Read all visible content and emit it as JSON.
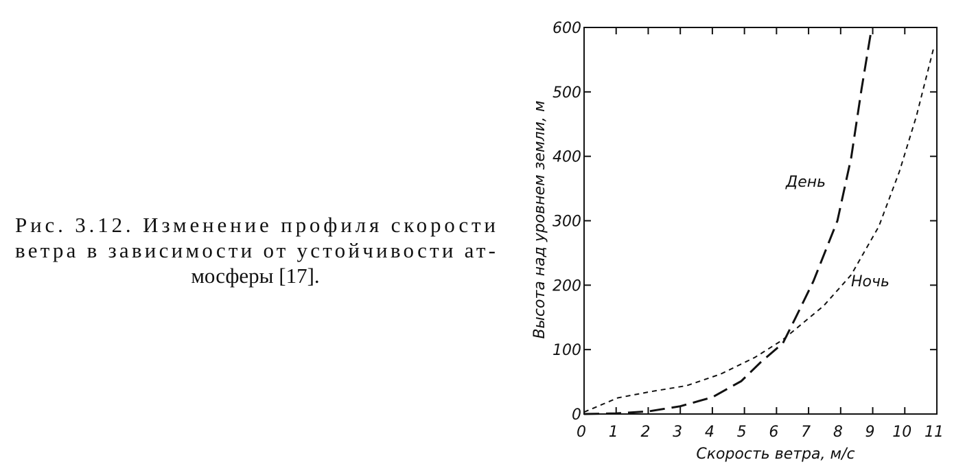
{
  "caption": [
    "Рис. 3.12. Изменение профиля скорости",
    "ветра в зависимости от устойчивости ат-",
    "мосферы [17]."
  ],
  "chart_data": {
    "type": "line",
    "xlabel": "Скорость ветра, м/с",
    "ylabel": "Высота над уровнем земли, м",
    "xlim": [
      0,
      11
    ],
    "xticks": [
      0,
      1,
      2,
      3,
      4,
      5,
      6,
      7,
      8,
      9,
      10,
      11
    ],
    "ylim": [
      0,
      600
    ],
    "yticks": [
      0,
      100,
      200,
      300,
      400,
      500,
      600
    ],
    "legend": "inline",
    "series": [
      {
        "name": "День",
        "color": "#111111",
        "dash": "long",
        "x": [
          0,
          1,
          2,
          3,
          4,
          4.9,
          5.5,
          6.2,
          6.6,
          7.15,
          7.9,
          8.33,
          8.65,
          8.97
        ],
        "values": [
          0,
          1,
          4,
          12,
          26,
          51,
          80,
          110,
          150,
          206,
          300,
          398,
          504,
          600
        ]
      },
      {
        "name": "Ночь",
        "color": "#111111",
        "dash": "short",
        "x": [
          0,
          1.05,
          2.1,
          3.2,
          4.26,
          5.33,
          6.19,
          7.47,
          8.33,
          9.19,
          9.83,
          10.36,
          10.9
        ],
        "values": [
          3,
          25,
          35,
          44,
          62,
          88,
          115,
          168,
          216,
          291,
          376,
          462,
          568
        ]
      }
    ]
  }
}
